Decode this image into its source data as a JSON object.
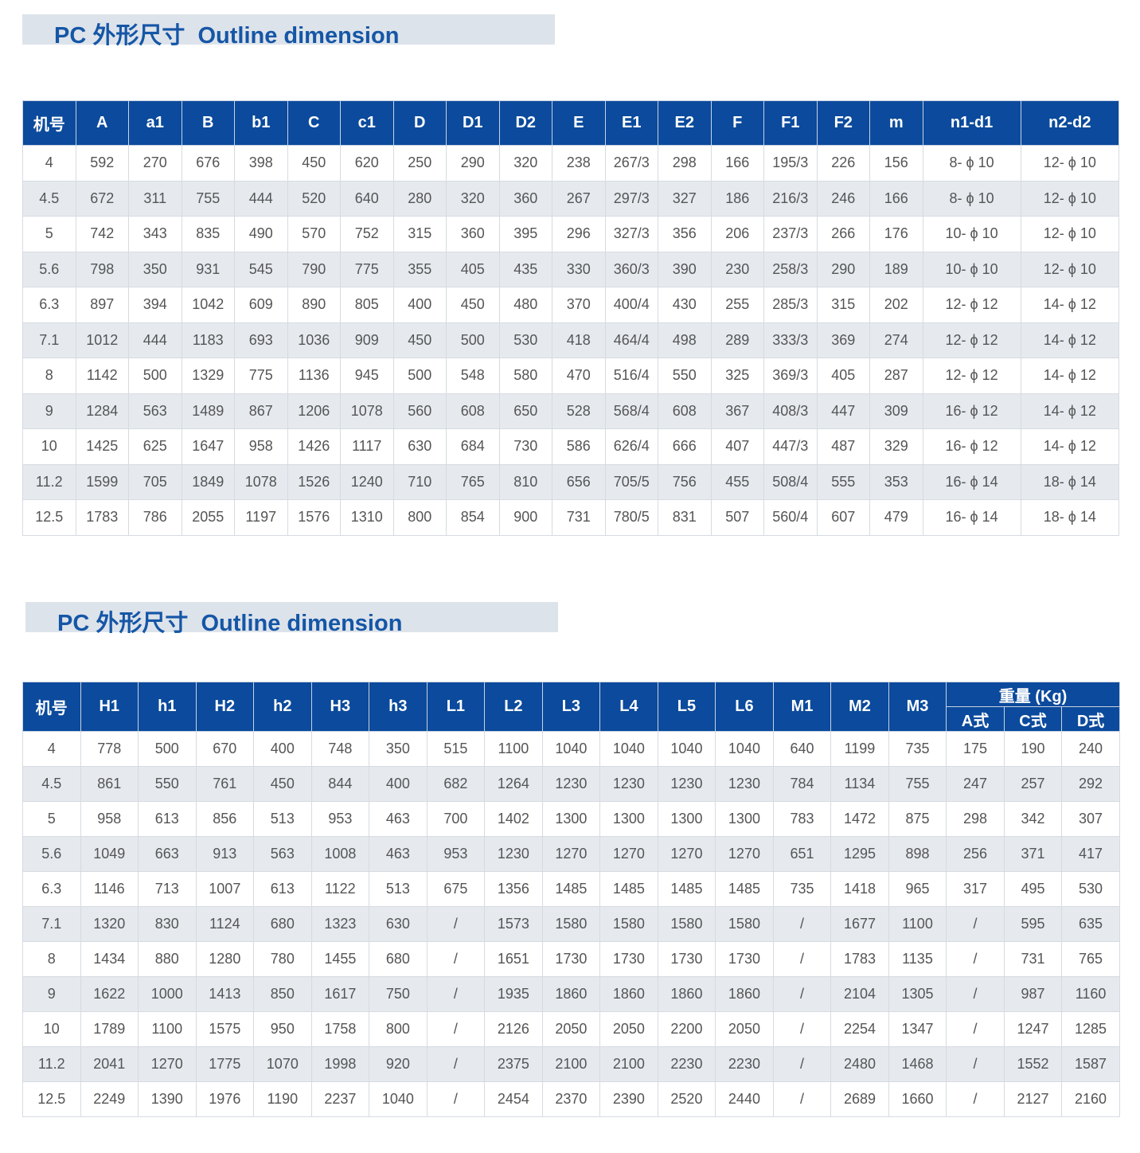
{
  "section1": {
    "title": "PC 外形尺寸  Outline dimension",
    "columns": [
      "机号",
      "A",
      "a1",
      "B",
      "b1",
      "C",
      "c1",
      "D",
      "D1",
      "D2",
      "E",
      "E1",
      "E2",
      "F",
      "F1",
      "F2",
      "m",
      "n1-d1",
      "n2-d2"
    ],
    "rows": [
      [
        "4",
        "592",
        "270",
        "676",
        "398",
        "450",
        "620",
        "250",
        "290",
        "320",
        "238",
        "267/3",
        "298",
        "166",
        "195/3",
        "226",
        "156",
        "8- ϕ 10",
        "12- ϕ 10"
      ],
      [
        "4.5",
        "672",
        "311",
        "755",
        "444",
        "520",
        "640",
        "280",
        "320",
        "360",
        "267",
        "297/3",
        "327",
        "186",
        "216/3",
        "246",
        "166",
        "8- ϕ 10",
        "12- ϕ 10"
      ],
      [
        "5",
        "742",
        "343",
        "835",
        "490",
        "570",
        "752",
        "315",
        "360",
        "395",
        "296",
        "327/3",
        "356",
        "206",
        "237/3",
        "266",
        "176",
        "10- ϕ 10",
        "12- ϕ 10"
      ],
      [
        "5.6",
        "798",
        "350",
        "931",
        "545",
        "790",
        "775",
        "355",
        "405",
        "435",
        "330",
        "360/3",
        "390",
        "230",
        "258/3",
        "290",
        "189",
        "10- ϕ 10",
        "12- ϕ 10"
      ],
      [
        "6.3",
        "897",
        "394",
        "1042",
        "609",
        "890",
        "805",
        "400",
        "450",
        "480",
        "370",
        "400/4",
        "430",
        "255",
        "285/3",
        "315",
        "202",
        "12- ϕ 12",
        "14- ϕ 12"
      ],
      [
        "7.1",
        "1012",
        "444",
        "1183",
        "693",
        "1036",
        "909",
        "450",
        "500",
        "530",
        "418",
        "464/4",
        "498",
        "289",
        "333/3",
        "369",
        "274",
        "12- ϕ 12",
        "14- ϕ 12"
      ],
      [
        "8",
        "1142",
        "500",
        "1329",
        "775",
        "1136",
        "945",
        "500",
        "548",
        "580",
        "470",
        "516/4",
        "550",
        "325",
        "369/3",
        "405",
        "287",
        "12- ϕ 12",
        "14- ϕ 12"
      ],
      [
        "9",
        "1284",
        "563",
        "1489",
        "867",
        "1206",
        "1078",
        "560",
        "608",
        "650",
        "528",
        "568/4",
        "608",
        "367",
        "408/3",
        "447",
        "309",
        "16- ϕ 12",
        "14- ϕ 12"
      ],
      [
        "10",
        "1425",
        "625",
        "1647",
        "958",
        "1426",
        "1117",
        "630",
        "684",
        "730",
        "586",
        "626/4",
        "666",
        "407",
        "447/3",
        "487",
        "329",
        "16- ϕ 12",
        "14- ϕ 12"
      ],
      [
        "11.2",
        "1599",
        "705",
        "1849",
        "1078",
        "1526",
        "1240",
        "710",
        "765",
        "810",
        "656",
        "705/5",
        "756",
        "455",
        "508/4",
        "555",
        "353",
        "16- ϕ 14",
        "18- ϕ 14"
      ],
      [
        "12.5",
        "1783",
        "786",
        "2055",
        "1197",
        "1576",
        "1310",
        "800",
        "854",
        "900",
        "731",
        "780/5",
        "831",
        "507",
        "560/4",
        "607",
        "479",
        "16- ϕ 14",
        "18- ϕ 14"
      ]
    ]
  },
  "section2": {
    "title": "PC 外形尺寸  Outline dimension",
    "columns": [
      "机号",
      "H1",
      "h1",
      "H2",
      "h2",
      "H3",
      "h3",
      "L1",
      "L2",
      "L3",
      "L4",
      "L5",
      "L6",
      "M1",
      "M2",
      "M3"
    ],
    "weight_group": "重量 (Kg)",
    "weight_columns": [
      "A式",
      "C式",
      "D式"
    ],
    "rows": [
      [
        "4",
        "778",
        "500",
        "670",
        "400",
        "748",
        "350",
        "515",
        "1100",
        "1040",
        "1040",
        "1040",
        "1040",
        "640",
        "1199",
        "735",
        "175",
        "190",
        "240"
      ],
      [
        "4.5",
        "861",
        "550",
        "761",
        "450",
        "844",
        "400",
        "682",
        "1264",
        "1230",
        "1230",
        "1230",
        "1230",
        "784",
        "1134",
        "755",
        "247",
        "257",
        "292"
      ],
      [
        "5",
        "958",
        "613",
        "856",
        "513",
        "953",
        "463",
        "700",
        "1402",
        "1300",
        "1300",
        "1300",
        "1300",
        "783",
        "1472",
        "875",
        "298",
        "342",
        "307"
      ],
      [
        "5.6",
        "1049",
        "663",
        "913",
        "563",
        "1008",
        "463",
        "953",
        "1230",
        "1270",
        "1270",
        "1270",
        "1270",
        "651",
        "1295",
        "898",
        "256",
        "371",
        "417"
      ],
      [
        "6.3",
        "1146",
        "713",
        "1007",
        "613",
        "1122",
        "513",
        "675",
        "1356",
        "1485",
        "1485",
        "1485",
        "1485",
        "735",
        "1418",
        "965",
        "317",
        "495",
        "530"
      ],
      [
        "7.1",
        "1320",
        "830",
        "1124",
        "680",
        "1323",
        "630",
        "/",
        "1573",
        "1580",
        "1580",
        "1580",
        "1580",
        "/",
        "1677",
        "1100",
        "/",
        "595",
        "635"
      ],
      [
        "8",
        "1434",
        "880",
        "1280",
        "780",
        "1455",
        "680",
        "/",
        "1651",
        "1730",
        "1730",
        "1730",
        "1730",
        "/",
        "1783",
        "1135",
        "/",
        "731",
        "765"
      ],
      [
        "9",
        "1622",
        "1000",
        "1413",
        "850",
        "1617",
        "750",
        "/",
        "1935",
        "1860",
        "1860",
        "1860",
        "1860",
        "/",
        "2104",
        "1305",
        "/",
        "987",
        "1160"
      ],
      [
        "10",
        "1789",
        "1100",
        "1575",
        "950",
        "1758",
        "800",
        "/",
        "2126",
        "2050",
        "2050",
        "2200",
        "2050",
        "/",
        "2254",
        "1347",
        "/",
        "1247",
        "1285"
      ],
      [
        "11.2",
        "2041",
        "1270",
        "1775",
        "1070",
        "1998",
        "920",
        "/",
        "2375",
        "2100",
        "2100",
        "2230",
        "2230",
        "/",
        "2480",
        "1468",
        "/",
        "1552",
        "1587"
      ],
      [
        "12.5",
        "2249",
        "1390",
        "1976",
        "1190",
        "2237",
        "1040",
        "/",
        "2454",
        "2370",
        "2390",
        "2520",
        "2440",
        "/",
        "2689",
        "1660",
        "/",
        "2127",
        "2160"
      ]
    ]
  }
}
